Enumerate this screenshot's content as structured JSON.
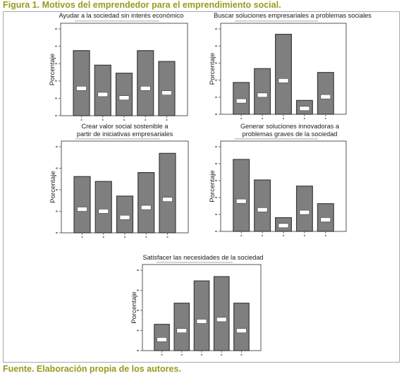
{
  "figure": {
    "title": "Figura 1. Motivos del emprendedor para el emprendimiento social.",
    "source": "Fuente. Elaboración propia de los autores."
  },
  "colors": {
    "caption": "#9a9a1c",
    "bar_fill": "#7f7f7f",
    "bar_stroke": "#3a3a3a",
    "frame": "#a8a8a8"
  },
  "chart_data": [
    {
      "type": "bar",
      "title": "Ayudar a la sociedad sin interés económico",
      "ylabel": "Porcentaje",
      "categories": [
        "1",
        "2",
        "3",
        "4",
        "5"
      ],
      "values": [
        30.0,
        23.3,
        19.6,
        30.0,
        25.0
      ],
      "value_labels": [
        "",
        "",
        "",
        "",
        ""
      ],
      "ylim": [
        0,
        40
      ]
    },
    {
      "type": "bar",
      "title": "Buscar soluciones empresariales a problemas sociales",
      "ylabel": "Porcentaje",
      "categories": [
        "1",
        "2",
        "3",
        "4",
        "5"
      ],
      "values": [
        14.9,
        21.4,
        37.5,
        6.5,
        19.6
      ],
      "value_labels": [
        "",
        "",
        "",
        "",
        ""
      ],
      "ylim": [
        0,
        40
      ]
    },
    {
      "type": "bar",
      "title": "Crear valor social sostenible a partir de iniciativas empresariales",
      "ylabel": "Porcentaje",
      "categories": [
        "1",
        "2",
        "3",
        "4",
        "5"
      ],
      "values": [
        19.6,
        17.9,
        12.8,
        21.0,
        27.7
      ],
      "value_labels": [
        "",
        "",
        "",
        "",
        ""
      ],
      "ylim": [
        0,
        30
      ]
    },
    {
      "type": "bar",
      "title": "Generar soluciones innovadoras a problemas graves de la sociedad",
      "ylabel": "Porcentaje",
      "categories": [
        "1",
        "2",
        "3",
        "4",
        "5"
      ],
      "values": [
        34.0,
        24.3,
        6.5,
        21.4,
        13.1
      ],
      "value_labels": [
        "",
        "",
        "",
        "",
        ""
      ],
      "ylim": [
        0,
        40
      ]
    },
    {
      "type": "bar",
      "title": "Satisfacer las necesidades de la sociedad",
      "ylabel": "Porcentaje",
      "categories": [
        "1",
        "2",
        "3",
        "4",
        "5"
      ],
      "values": [
        9.8,
        17.7,
        26.0,
        27.6,
        17.7
      ],
      "value_labels": [
        "",
        "",
        "",
        "",
        ""
      ],
      "ylim": [
        0,
        30
      ]
    }
  ]
}
